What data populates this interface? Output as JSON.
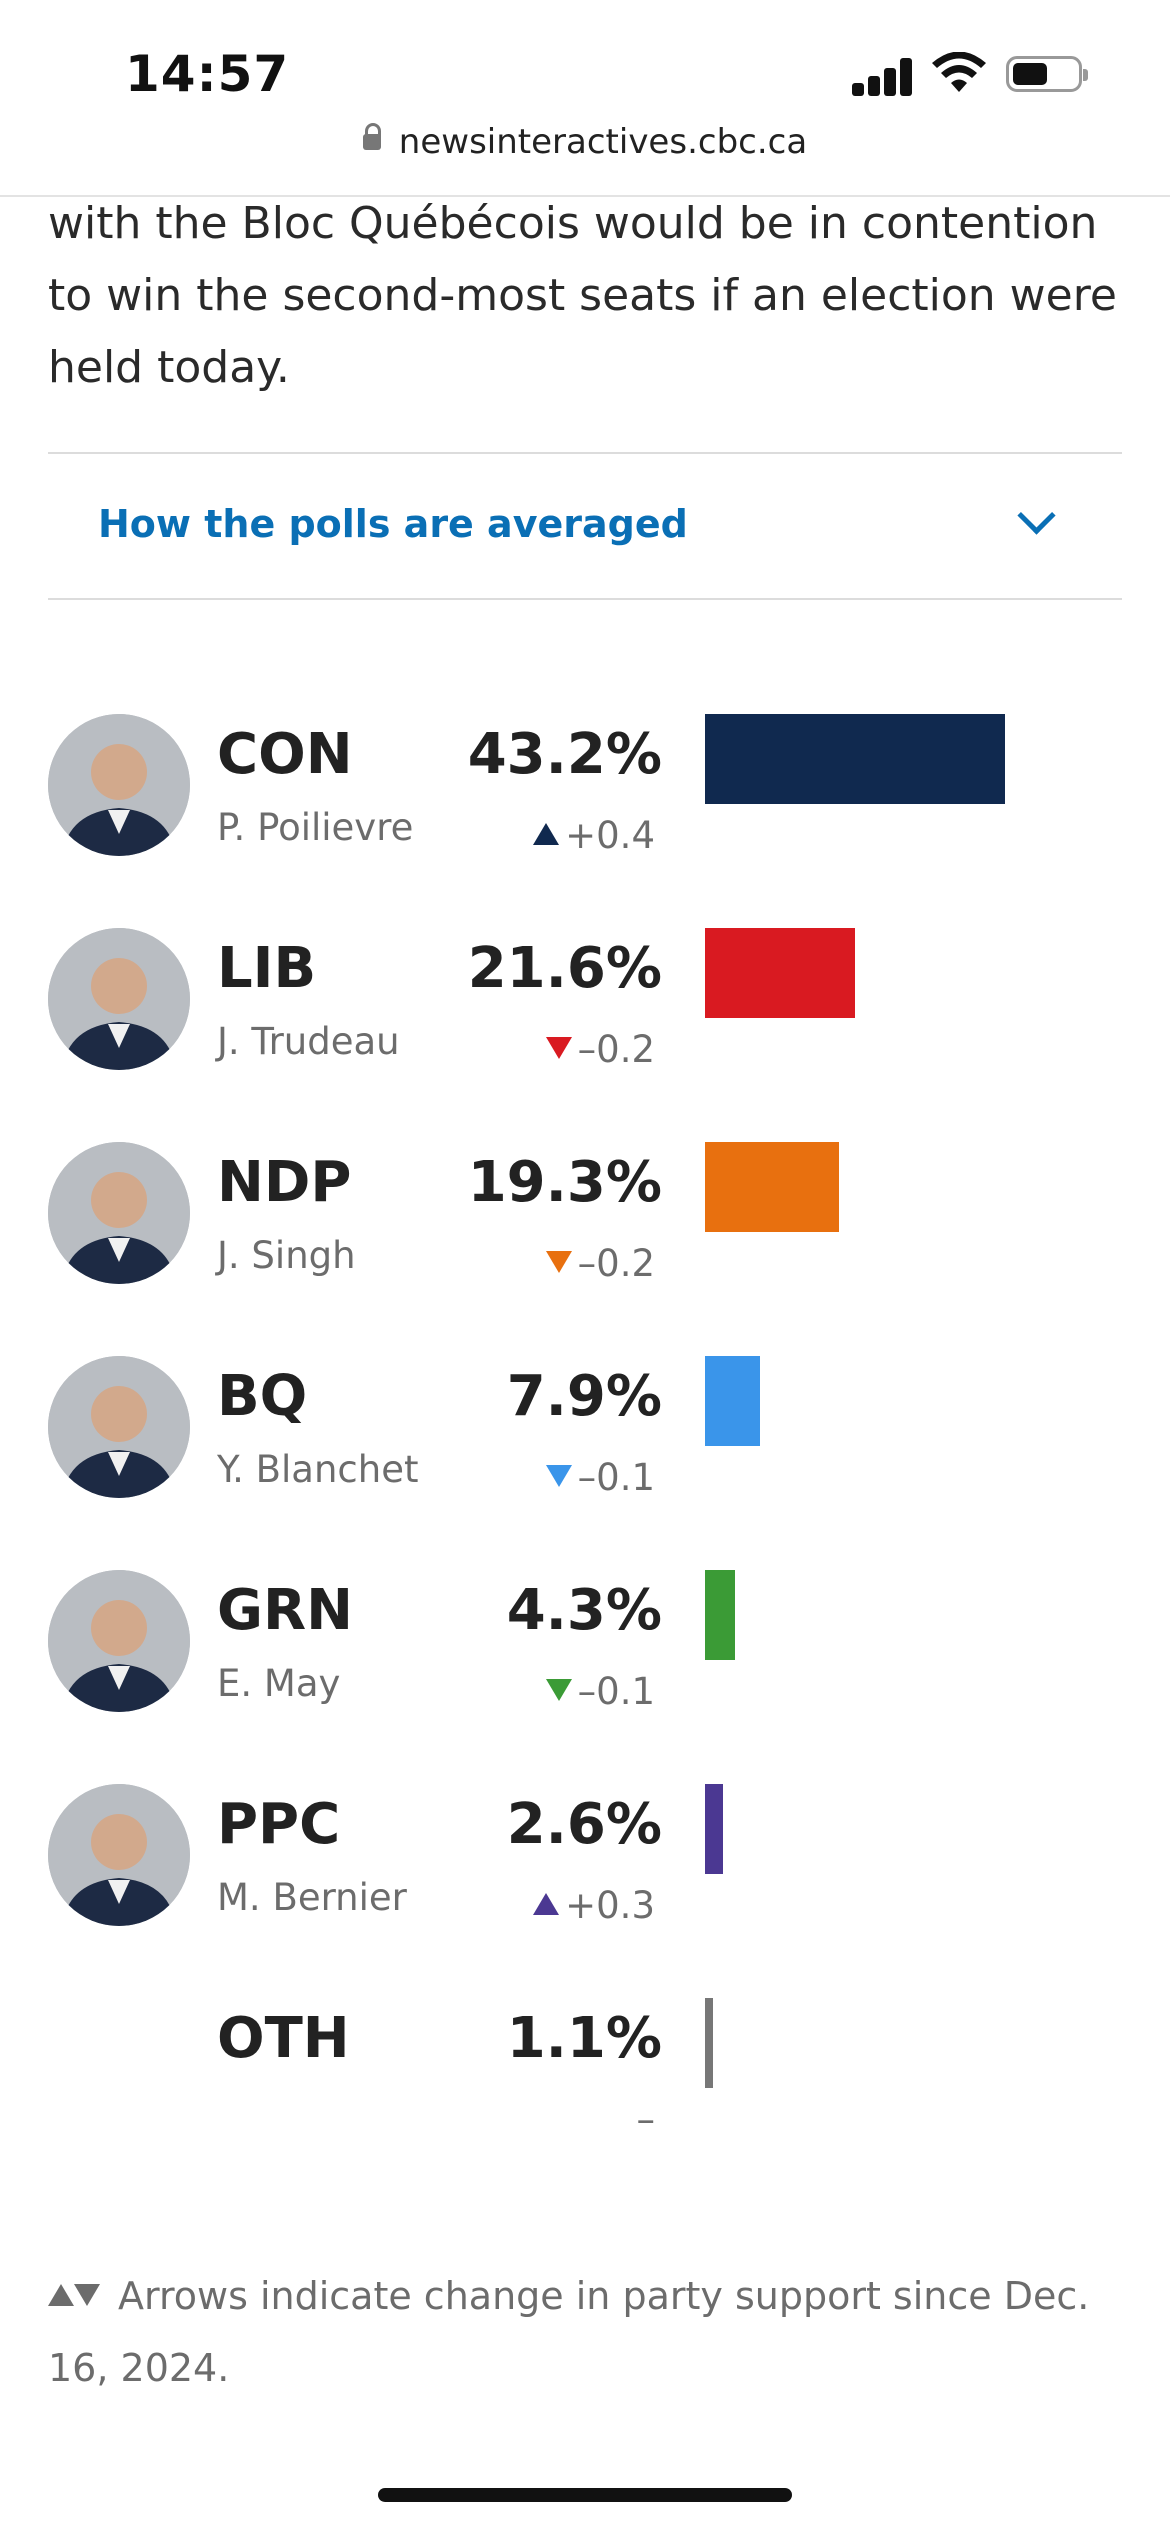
{
  "status_bar": {
    "time": "14:57",
    "url": "newsinteractives.cbc.ca"
  },
  "article": {
    "intro_text": "with the Bloc Québécois would be in contention to win the second-most seats if an election were held today."
  },
  "accordion": {
    "label": "How the polls are averaged"
  },
  "chart_data": {
    "type": "bar",
    "orientation": "horizontal",
    "value_unit": "%",
    "rows": [
      {
        "party": "CON",
        "leader": "P. Poilievre",
        "value": 43.2,
        "value_label": "43.2%",
        "direction": "up",
        "change_label": "+0.4",
        "color": "#10294f",
        "avatar_icon": "portrait-poilievre"
      },
      {
        "party": "LIB",
        "leader": "J. Trudeau",
        "value": 21.6,
        "value_label": "21.6%",
        "direction": "down",
        "change_label": "–0.2",
        "color": "#d91a21",
        "avatar_icon": "portrait-trudeau"
      },
      {
        "party": "NDP",
        "leader": "J. Singh",
        "value": 19.3,
        "value_label": "19.3%",
        "direction": "down",
        "change_label": "–0.2",
        "color": "#e8700f",
        "avatar_icon": "portrait-singh"
      },
      {
        "party": "BQ",
        "leader": "Y. Blanchet",
        "value": 7.9,
        "value_label": "7.9%",
        "direction": "down",
        "change_label": "–0.1",
        "color": "#3a95ea",
        "avatar_icon": "portrait-blanchet"
      },
      {
        "party": "GRN",
        "leader": "E. May",
        "value": 4.3,
        "value_label": "4.3%",
        "direction": "down",
        "change_label": "–0.1",
        "color": "#3b9b36",
        "avatar_icon": "portrait-may"
      },
      {
        "party": "PPC",
        "leader": "M. Bernier",
        "value": 2.6,
        "value_label": "2.6%",
        "direction": "up",
        "change_label": "+0.3",
        "color": "#4b3892",
        "avatar_icon": "portrait-bernier"
      },
      {
        "party": "OTH",
        "leader": "",
        "value": 1.1,
        "value_label": "1.1%",
        "direction": "none",
        "change_label": "–",
        "color": "#777777",
        "avatar_icon": ""
      }
    ]
  },
  "footnote": {
    "text": "Arrows indicate change in party support since Dec. 16, 2024."
  }
}
